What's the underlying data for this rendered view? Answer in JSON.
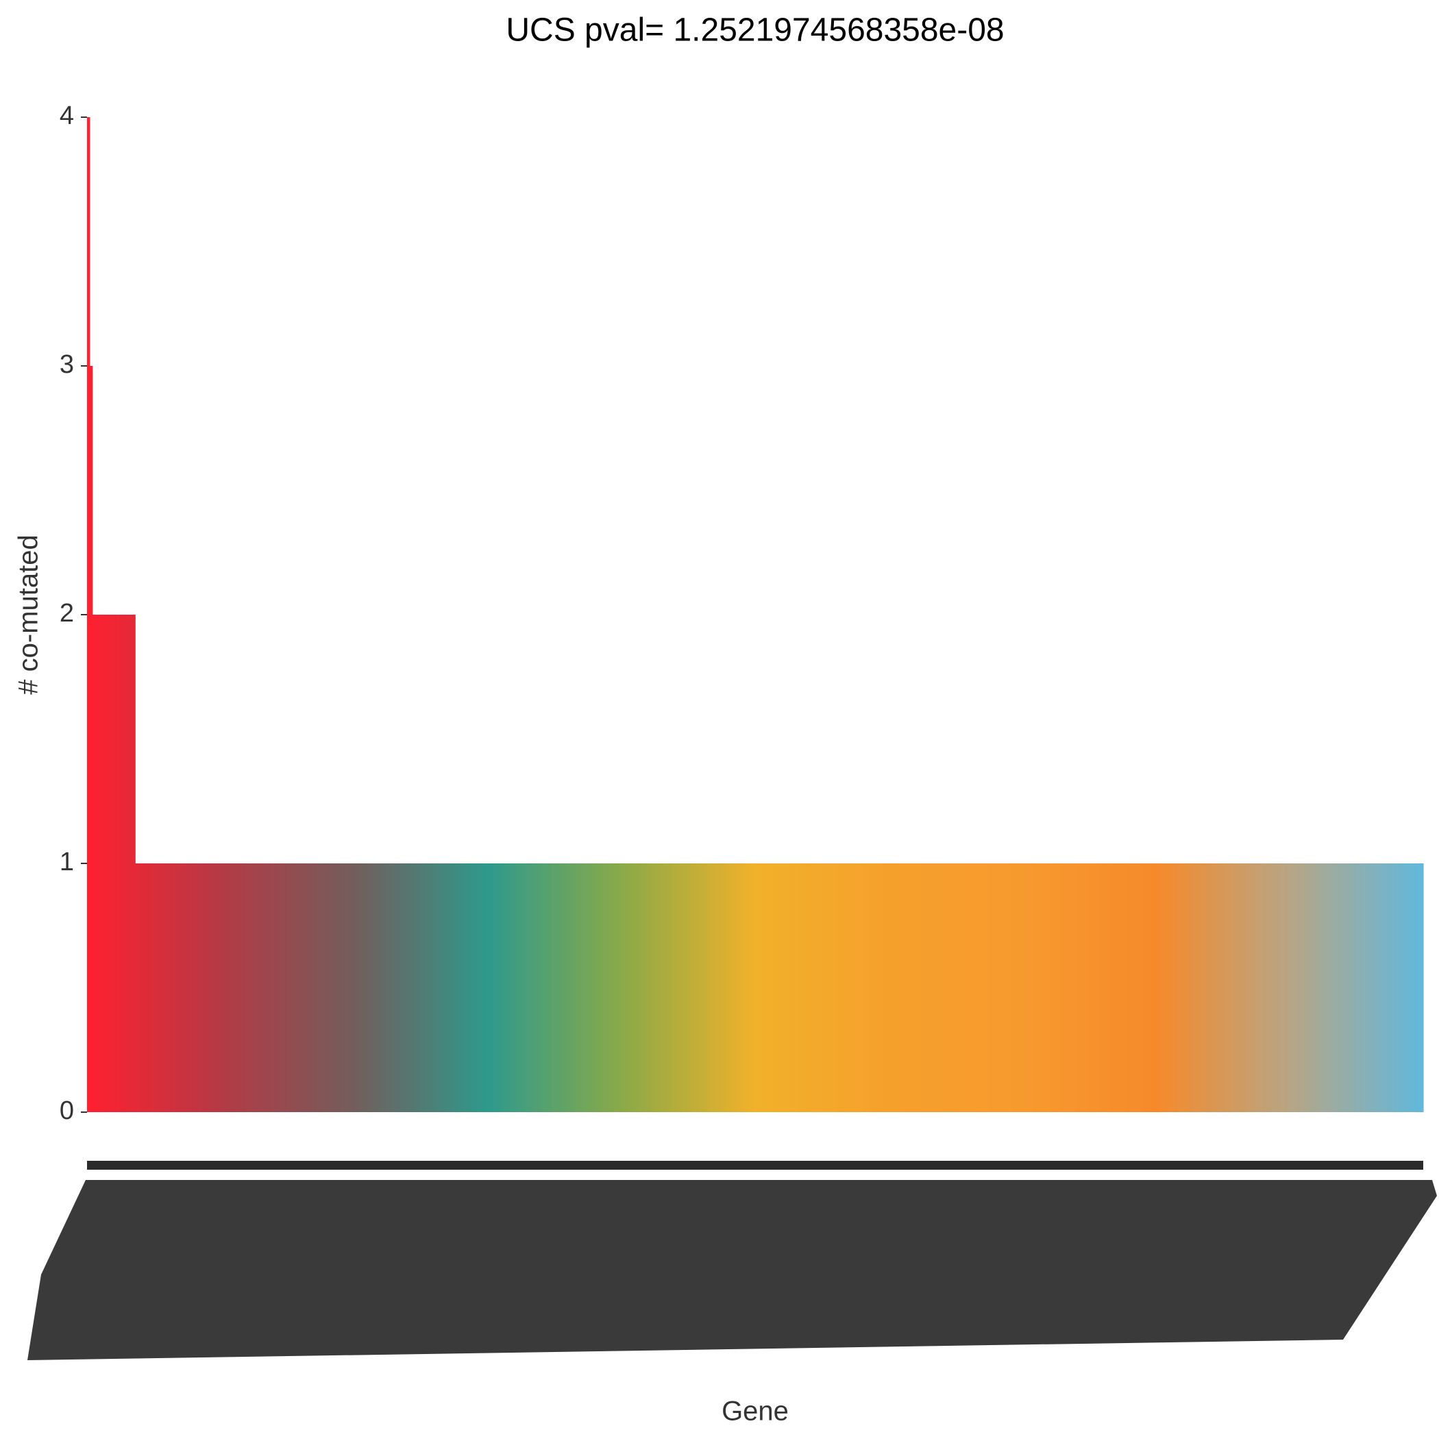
{
  "chart_data": {
    "type": "bar",
    "title": "UCS pval= 1.2521974568358e-08",
    "x_label": "Gene",
    "y_label": "# co-mutated",
    "ylim": [
      0,
      4
    ],
    "yticks": [
      0,
      1,
      2,
      3,
      4
    ],
    "grid": false,
    "palette": [
      "#ff2030",
      "#b43a45",
      "#725e5c",
      "#2e9a8c",
      "#8aaa48",
      "#f1b12a",
      "#f6a02c",
      "#f79a2e",
      "#f68a2a",
      "#b8a584",
      "#62b8dc"
    ],
    "categories": [
      null,
      null,
      null,
      null,
      null,
      null,
      null,
      null,
      null,
      null,
      null,
      null,
      null,
      null,
      null,
      null,
      null,
      null,
      null,
      null,
      null,
      null,
      null,
      null,
      null,
      null,
      null,
      null,
      null,
      null,
      null,
      null,
      null,
      null,
      null,
      null,
      null,
      null,
      null,
      null,
      null,
      null,
      null,
      null,
      null,
      null,
      null,
      null,
      null,
      null,
      null,
      null,
      null,
      null,
      null,
      null,
      null,
      null,
      null,
      null,
      null,
      null,
      null,
      null,
      null,
      null,
      null,
      null,
      null,
      null,
      null,
      null,
      null,
      null,
      null,
      null,
      null,
      null,
      null,
      null,
      null,
      null,
      null,
      null,
      null,
      null,
      null,
      null,
      null,
      null,
      null,
      null,
      null,
      null,
      null,
      null,
      null,
      null,
      null,
      null,
      null,
      null,
      null,
      null,
      null,
      null,
      null,
      null,
      null,
      null,
      null,
      null,
      null,
      null,
      null,
      null,
      null,
      null,
      null,
      null,
      null,
      null,
      null,
      null,
      null,
      null,
      null,
      null,
      null,
      null,
      null,
      null,
      null,
      null,
      null,
      null,
      null,
      null,
      null,
      null,
      null,
      null,
      null,
      null,
      null,
      null,
      null,
      null,
      null,
      null,
      null,
      null,
      null,
      null,
      null,
      null,
      null,
      null,
      null,
      null,
      null,
      null,
      null,
      null,
      null,
      null,
      null,
      null,
      null,
      null,
      null,
      null,
      null,
      null,
      null,
      null,
      null,
      null,
      null,
      null,
      null,
      null,
      null,
      null,
      null,
      null,
      null,
      null,
      null,
      null,
      null,
      null,
      null,
      null,
      null,
      null,
      null,
      null,
      null,
      null,
      null,
      null,
      null,
      null,
      null,
      null,
      null,
      null,
      null,
      null,
      null,
      null,
      null,
      null,
      null,
      null,
      null,
      null,
      null,
      null,
      null,
      null,
      null,
      null,
      null,
      null,
      null,
      null,
      null,
      null,
      null,
      null,
      null,
      null,
      null,
      null,
      null,
      null,
      null,
      null,
      null,
      null,
      null,
      null,
      null,
      null,
      null,
      null,
      null,
      null,
      null,
      null,
      null,
      null,
      null,
      null,
      null,
      null,
      null,
      null,
      null,
      null,
      null,
      null,
      null,
      null,
      null,
      null,
      null,
      null,
      null,
      null,
      null,
      null,
      null,
      null,
      null,
      null,
      null,
      null,
      null,
      null,
      null,
      null,
      null,
      null,
      null,
      null,
      null,
      null,
      null,
      null,
      null,
      null,
      null,
      null,
      null,
      null,
      null,
      null,
      null,
      null,
      null,
      null,
      null,
      null,
      null,
      null,
      null,
      null,
      null,
      null,
      null,
      null,
      null,
      null,
      null,
      null,
      null,
      null,
      null,
      null,
      null,
      null,
      null,
      null,
      null,
      null,
      null,
      null,
      null,
      null,
      null,
      null,
      null,
      null,
      null,
      null,
      null,
      null,
      null,
      null,
      null,
      null,
      null,
      null,
      null,
      null,
      null,
      null,
      null,
      null,
      null,
      null,
      null,
      null,
      null,
      null,
      null,
      null,
      null,
      null,
      null,
      null,
      null,
      null,
      null,
      null,
      null,
      null,
      null,
      null,
      null,
      null,
      null,
      null,
      null,
      null,
      null,
      null,
      null,
      null,
      null,
      null,
      null,
      null,
      null,
      null,
      null,
      null,
      null,
      null,
      null,
      null,
      null,
      null,
      null,
      null,
      null,
      null,
      null,
      null,
      null,
      null,
      null,
      null,
      null,
      null,
      null,
      null,
      null,
      null,
      null,
      null,
      null,
      null,
      null,
      null,
      null,
      null,
      null,
      null,
      null,
      null,
      null,
      null,
      null,
      null,
      null,
      null,
      null,
      null,
      null,
      null,
      null,
      null,
      null,
      null,
      null,
      null,
      null,
      null,
      null,
      null,
      null,
      null,
      null,
      null,
      null,
      null,
      null,
      null,
      null,
      null,
      null,
      null,
      null,
      null,
      null,
      null,
      null,
      null,
      null,
      null,
      null,
      null,
      null,
      null,
      null,
      null,
      null,
      null,
      null,
      null,
      null,
      null,
      null,
      null,
      null,
      null,
      null,
      null,
      null,
      null,
      null,
      null,
      null,
      null,
      null,
      null,
      null,
      null,
      null,
      null,
      null,
      null,
      null,
      null,
      null,
      null
    ],
    "values": [
      4,
      3,
      2,
      2,
      2,
      2,
      2,
      2,
      2,
      2,
      2,
      2,
      2,
      2,
      2,
      2,
      2,
      2,
      1,
      1,
      1,
      1,
      1,
      1,
      1,
      1,
      1,
      1,
      1,
      1,
      1,
      1,
      1,
      1,
      1,
      1,
      1,
      1,
      1,
      1,
      1,
      1,
      1,
      1,
      1,
      1,
      1,
      1,
      1,
      1,
      1,
      1,
      1,
      1,
      1,
      1,
      1,
      1,
      1,
      1,
      1,
      1,
      1,
      1,
      1,
      1,
      1,
      1,
      1,
      1,
      1,
      1,
      1,
      1,
      1,
      1,
      1,
      1,
      1,
      1,
      1,
      1,
      1,
      1,
      1,
      1,
      1,
      1,
      1,
      1,
      1,
      1,
      1,
      1,
      1,
      1,
      1,
      1,
      1,
      1,
      1,
      1,
      1,
      1,
      1,
      1,
      1,
      1,
      1,
      1,
      1,
      1,
      1,
      1,
      1,
      1,
      1,
      1,
      1,
      1,
      1,
      1,
      1,
      1,
      1,
      1,
      1,
      1,
      1,
      1,
      1,
      1,
      1,
      1,
      1,
      1,
      1,
      1,
      1,
      1,
      1,
      1,
      1,
      1,
      1,
      1,
      1,
      1,
      1,
      1,
      1,
      1,
      1,
      1,
      1,
      1,
      1,
      1,
      1,
      1,
      1,
      1,
      1,
      1,
      1,
      1,
      1,
      1,
      1,
      1,
      1,
      1,
      1,
      1,
      1,
      1,
      1,
      1,
      1,
      1,
      1,
      1,
      1,
      1,
      1,
      1,
      1,
      1,
      1,
      1,
      1,
      1,
      1,
      1,
      1,
      1,
      1,
      1,
      1,
      1,
      1,
      1,
      1,
      1,
      1,
      1,
      1,
      1,
      1,
      1,
      1,
      1,
      1,
      1,
      1,
      1,
      1,
      1,
      1,
      1,
      1,
      1,
      1,
      1,
      1,
      1,
      1,
      1,
      1,
      1,
      1,
      1,
      1,
      1,
      1,
      1,
      1,
      1,
      1,
      1,
      1,
      1,
      1,
      1,
      1,
      1,
      1,
      1,
      1,
      1,
      1,
      1,
      1,
      1,
      1,
      1,
      1,
      1,
      1,
      1,
      1,
      1,
      1,
      1,
      1,
      1,
      1,
      1,
      1,
      1,
      1,
      1,
      1,
      1,
      1,
      1,
      1,
      1,
      1,
      1,
      1,
      1,
      1,
      1,
      1,
      1,
      1,
      1,
      1,
      1,
      1,
      1,
      1,
      1,
      1,
      1,
      1,
      1,
      1,
      1,
      1,
      1,
      1,
      1,
      1,
      1,
      1,
      1,
      1,
      1,
      1,
      1,
      1,
      1,
      1,
      1,
      1,
      1,
      1,
      1,
      1,
      1,
      1,
      1,
      1,
      1,
      1,
      1,
      1,
      1,
      1,
      1,
      1,
      1,
      1,
      1,
      1,
      1,
      1,
      1,
      1,
      1,
      1,
      1,
      1,
      1,
      1,
      1,
      1,
      1,
      1,
      1,
      1,
      1,
      1,
      1,
      1,
      1,
      1,
      1,
      1,
      1,
      1,
      1,
      1,
      1,
      1,
      1,
      1,
      1,
      1,
      1,
      1,
      1,
      1,
      1,
      1,
      1,
      1,
      1,
      1,
      1,
      1,
      1,
      1,
      1,
      1,
      1,
      1,
      1,
      1,
      1,
      1,
      1,
      1,
      1,
      1,
      1,
      1,
      1,
      1,
      1,
      1,
      1,
      1,
      1,
      1,
      1,
      1,
      1,
      1,
      1,
      1,
      1,
      1,
      1,
      1,
      1,
      1,
      1,
      1,
      1,
      1,
      1,
      1,
      1,
      1,
      1,
      1,
      1,
      1,
      1,
      1,
      1,
      1,
      1,
      1,
      1,
      1,
      1,
      1,
      1,
      1,
      1,
      1,
      1,
      1,
      1,
      1,
      1,
      1,
      1,
      1,
      1,
      1,
      1,
      1,
      1,
      1,
      1,
      1,
      1,
      1,
      1,
      1,
      1,
      1,
      1,
      1,
      1,
      1,
      1,
      1,
      1,
      1,
      1,
      1,
      1,
      1,
      1,
      1,
      1,
      1,
      1,
      1,
      1,
      1,
      1,
      1,
      1,
      1,
      1,
      1,
      1,
      1,
      1,
      1,
      1,
      1,
      1
    ]
  }
}
